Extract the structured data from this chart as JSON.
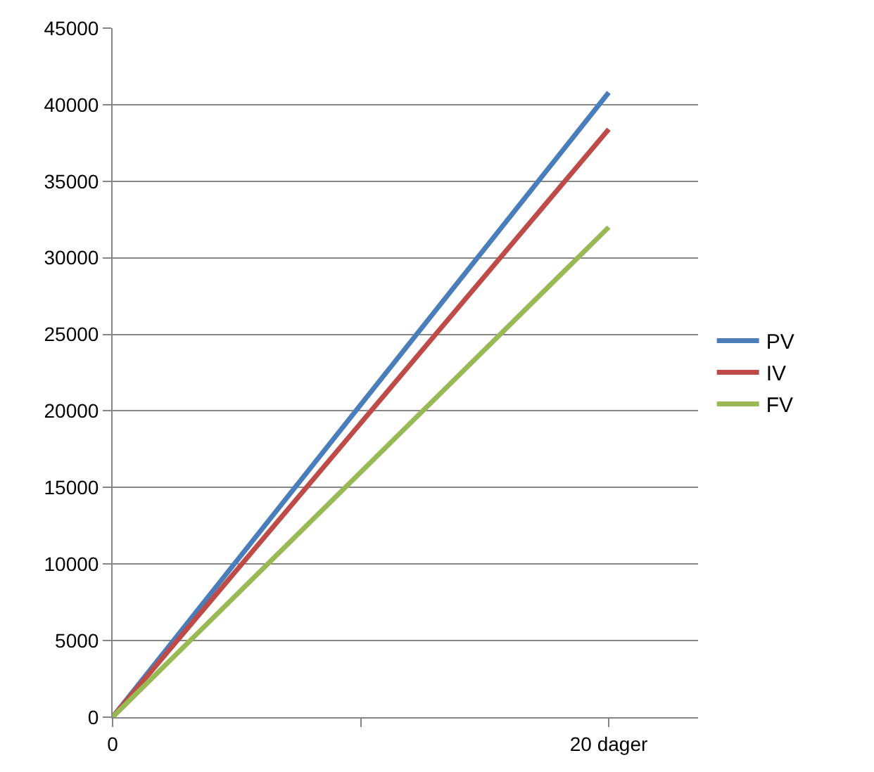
{
  "chart_data": {
    "type": "line",
    "x": [
      0,
      20
    ],
    "series": [
      {
        "name": "PV",
        "color": "#4a7ebb",
        "values": [
          0,
          40800
        ]
      },
      {
        "name": "IV",
        "color": "#be4b48",
        "values": [
          0,
          38400
        ]
      },
      {
        "name": "FV",
        "color": "#98b954",
        "values": [
          0,
          32000
        ]
      }
    ],
    "xlim": [
      0,
      23.6
    ],
    "xticks": [
      0,
      {
        "value": 10,
        "label": null
      },
      {
        "value": 20,
        "label": "20 dager"
      }
    ],
    "ylim": [
      0,
      45000
    ],
    "yticks": [
      0,
      5000,
      10000,
      15000,
      20000,
      25000,
      30000,
      35000,
      40000,
      45000
    ],
    "grid": "y",
    "legend": "right",
    "marker": "none",
    "line_style": "solid"
  }
}
